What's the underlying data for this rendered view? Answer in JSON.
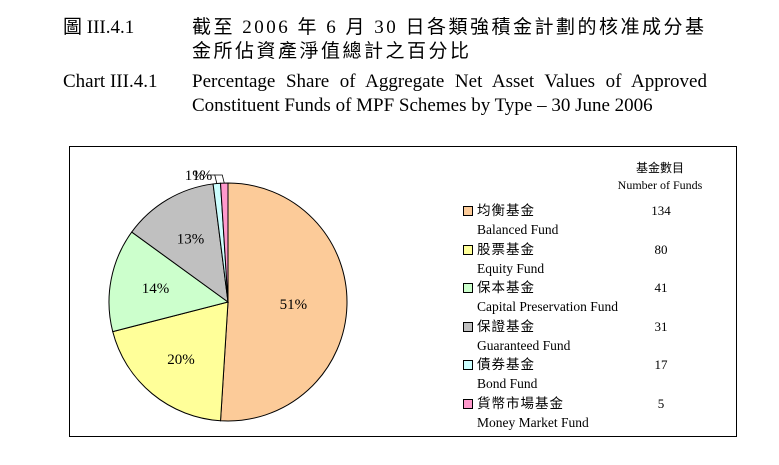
{
  "header": {
    "zh_label": "圖 III.4.1",
    "zh_title": "截至 2006 年 6 月 30 日各類強積金計劃的核准成分基金所佔資產淨值總計之百分比",
    "en_label": "Chart III.4.1",
    "en_title": "Percentage Share of Aggregate Net Asset Values of Approved Constituent Funds of MPF Schemes by Type – 30 June 2006"
  },
  "legend": {
    "heading_zh": "基金數目",
    "heading_en": "Number of Funds"
  },
  "chart_data": {
    "type": "pie",
    "title": "Percentage Share of Aggregate Net Asset Values of Approved Constituent Funds of MPF Schemes by Type – 30 June 2006",
    "unit": "%",
    "slices": [
      {
        "name_zh": "均衡基金",
        "name_en": "Balanced Fund",
        "value": 51,
        "label": "51%",
        "funds": 134,
        "color": "#FCCB99"
      },
      {
        "name_zh": "股票基金",
        "name_en": "Equity Fund",
        "value": 20,
        "label": "20%",
        "funds": 80,
        "color": "#FFFF99"
      },
      {
        "name_zh": "保本基金",
        "name_en": "Capital Preservation Fund",
        "value": 14,
        "label": "14%",
        "funds": 41,
        "color": "#CCFFCC"
      },
      {
        "name_zh": "保證基金",
        "name_en": "Guaranteed Fund",
        "value": 13,
        "label": "13%",
        "funds": 31,
        "color": "#C0C0C0"
      },
      {
        "name_zh": "債券基金",
        "name_en": "Bond Fund",
        "value": 1,
        "label": "1%",
        "funds": 17,
        "color": "#CCFFFF"
      },
      {
        "name_zh": "貨幣市場基金",
        "name_en": "Money Market Fund",
        "value": 1,
        "label": "1%",
        "funds": 5,
        "color": "#FF99CC"
      }
    ],
    "start": "12 o'clock, clockwise",
    "legend_position": "right"
  }
}
